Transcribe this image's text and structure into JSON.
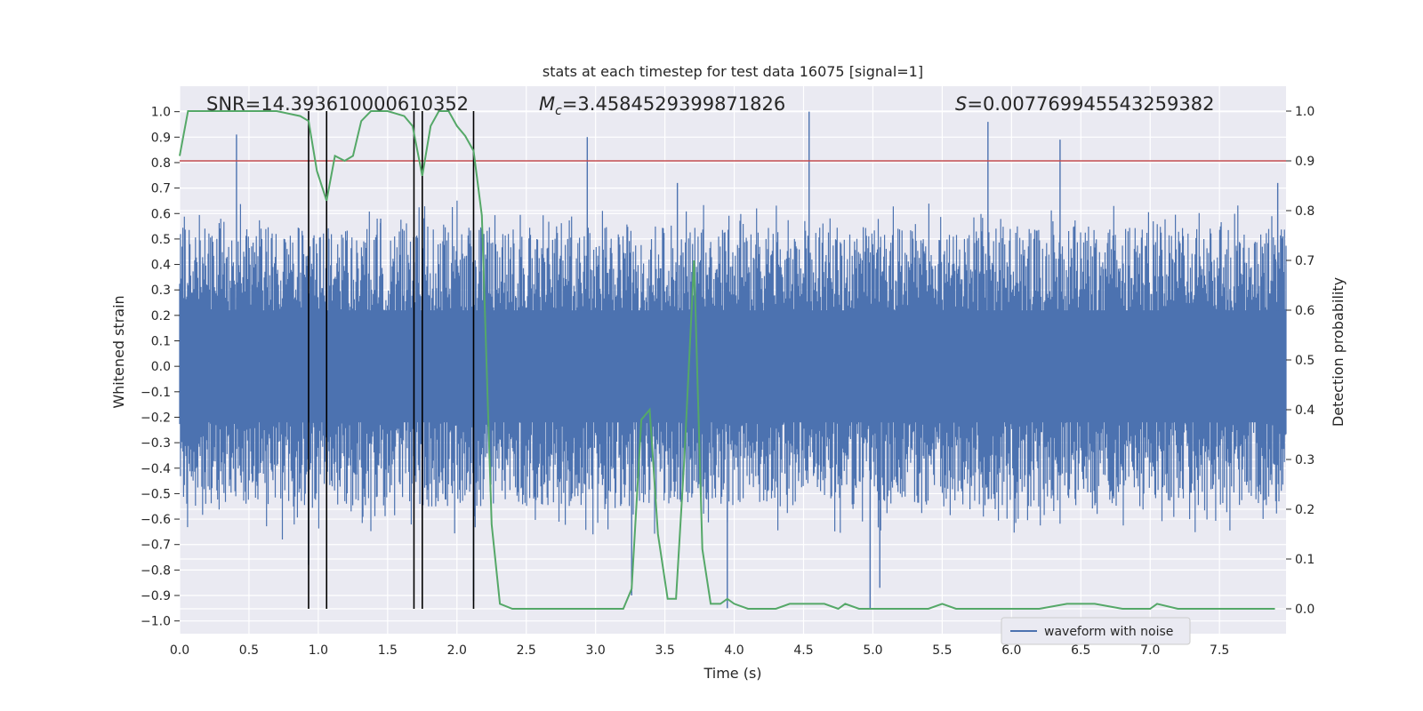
{
  "chart_data": {
    "type": "line",
    "title": "stats at each timestep for test data 16075 [signal=1]",
    "xlabel": "Time (s)",
    "ylabel": "Whitened strain",
    "y2label": "Detection probability",
    "xlim": [
      0.0,
      7.98
    ],
    "ylim": [
      -1.05,
      1.1
    ],
    "y2lim": [
      -0.05,
      1.05
    ],
    "x_ticks": [
      0.0,
      0.5,
      1.0,
      1.5,
      2.0,
      2.5,
      3.0,
      3.5,
      4.0,
      4.5,
      5.0,
      5.5,
      6.0,
      6.5,
      7.0,
      7.5
    ],
    "x_tick_labels": [
      "0.0",
      "0.5",
      "1.0",
      "1.5",
      "2.0",
      "2.5",
      "3.0",
      "3.5",
      "4.0",
      "4.5",
      "5.0",
      "5.5",
      "6.0",
      "6.5",
      "7.0",
      "7.5"
    ],
    "y_ticks": [
      1.0,
      0.9,
      0.8,
      0.7,
      0.6,
      0.5,
      0.4,
      0.3,
      0.2,
      0.1,
      0.0,
      -0.1,
      -0.2,
      -0.3,
      -0.4,
      -0.5,
      -0.6,
      -0.7,
      -0.8,
      -0.9,
      -1.0
    ],
    "y_tick_labels": [
      "1.0",
      "0.9",
      "0.8",
      "0.7",
      "0.6",
      "0.5",
      "0.4",
      "0.3",
      "0.2",
      "0.1",
      "0.0",
      "−0.1",
      "−0.2",
      "−0.3",
      "−0.4",
      "−0.5",
      "−0.6",
      "−0.7",
      "−0.8",
      "−0.9",
      "−1.0"
    ],
    "y2_ticks": [
      1.0,
      0.9,
      0.8,
      0.7,
      0.6,
      0.5,
      0.4,
      0.3,
      0.2,
      0.1,
      0.0
    ],
    "y2_tick_labels": [
      "1.0",
      "0.9",
      "0.8",
      "0.7",
      "0.6",
      "0.5",
      "0.4",
      "0.3",
      "0.2",
      "0.1",
      "0.0"
    ],
    "grid": true,
    "legend_position": "lower-right",
    "annotations": {
      "snr": "SNR=14.393610000610352",
      "mc_symbol": "M",
      "mc_subscript": "c",
      "mc_value": "=3.4584529399871826",
      "s_symbol": "S",
      "s_value": "=0.007769945543259382"
    },
    "threshold_line": {
      "y2": 0.9,
      "color": "#c44e52"
    },
    "vertical_lines": {
      "x": [
        0.93,
        1.06,
        1.69,
        1.75,
        2.12
      ],
      "y2_range": [
        0.0,
        1.0
      ],
      "color": "#000000"
    },
    "series": [
      {
        "name": "waveform with noise",
        "color": "#4c72b0",
        "x_range": [
          0.0,
          7.98
        ],
        "core_band": [
          -0.55,
          0.55
        ],
        "peaks": [
          {
            "x": 0.41,
            "y": 0.91
          },
          {
            "x": 0.93,
            "y": -0.78
          },
          {
            "x": 1.45,
            "y": 0.58
          },
          {
            "x": 1.75,
            "y": -0.72
          },
          {
            "x": 2.12,
            "y": -0.92
          },
          {
            "x": 2.94,
            "y": 0.9
          },
          {
            "x": 3.26,
            "y": -0.9
          },
          {
            "x": 3.59,
            "y": 0.72
          },
          {
            "x": 3.95,
            "y": -0.95
          },
          {
            "x": 4.54,
            "y": 1.0
          },
          {
            "x": 4.98,
            "y": -0.95
          },
          {
            "x": 5.05,
            "y": -0.87
          },
          {
            "x": 5.83,
            "y": 0.96
          },
          {
            "x": 6.35,
            "y": 0.89
          },
          {
            "x": 7.92,
            "y": 0.72
          }
        ]
      },
      {
        "name": "detection probability",
        "color": "#55a868",
        "axis": "right",
        "x": [
          0.0,
          0.06,
          0.15,
          0.3,
          0.5,
          0.7,
          0.87,
          0.93,
          0.99,
          1.06,
          1.12,
          1.19,
          1.25,
          1.31,
          1.38,
          1.5,
          1.62,
          1.68,
          1.75,
          1.81,
          1.87,
          1.94,
          2.0,
          2.06,
          2.12,
          2.18,
          2.25,
          2.31,
          2.4,
          2.6,
          2.8,
          3.0,
          3.1,
          3.2,
          3.26,
          3.33,
          3.39,
          3.45,
          3.52,
          3.58,
          3.64,
          3.71,
          3.77,
          3.83,
          3.9,
          3.95,
          4.0,
          4.1,
          4.3,
          4.4,
          4.5,
          4.55,
          4.65,
          4.75,
          4.8,
          4.9,
          5.0,
          5.2,
          5.4,
          5.5,
          5.6,
          5.8,
          6.0,
          6.2,
          6.4,
          6.5,
          6.6,
          6.8,
          7.0,
          7.05,
          7.2,
          7.5,
          7.9
        ],
        "y": [
          0.91,
          1.0,
          1.0,
          1.0,
          1.0,
          1.0,
          0.99,
          0.98,
          0.88,
          0.82,
          0.91,
          0.9,
          0.91,
          0.98,
          1.0,
          1.0,
          0.99,
          0.97,
          0.87,
          0.97,
          1.0,
          1.0,
          0.97,
          0.95,
          0.92,
          0.79,
          0.17,
          0.01,
          0.0,
          0.0,
          0.0,
          0.0,
          0.0,
          0.0,
          0.04,
          0.38,
          0.4,
          0.15,
          0.02,
          0.02,
          0.3,
          0.7,
          0.12,
          0.01,
          0.01,
          0.02,
          0.01,
          0.0,
          0.0,
          0.01,
          0.01,
          0.01,
          0.01,
          0.0,
          0.01,
          0.0,
          0.0,
          0.0,
          0.0,
          0.01,
          0.0,
          0.0,
          0.0,
          0.0,
          0.01,
          0.01,
          0.01,
          0.0,
          0.0,
          0.01,
          0.0,
          0.0,
          0.0
        ]
      }
    ]
  }
}
